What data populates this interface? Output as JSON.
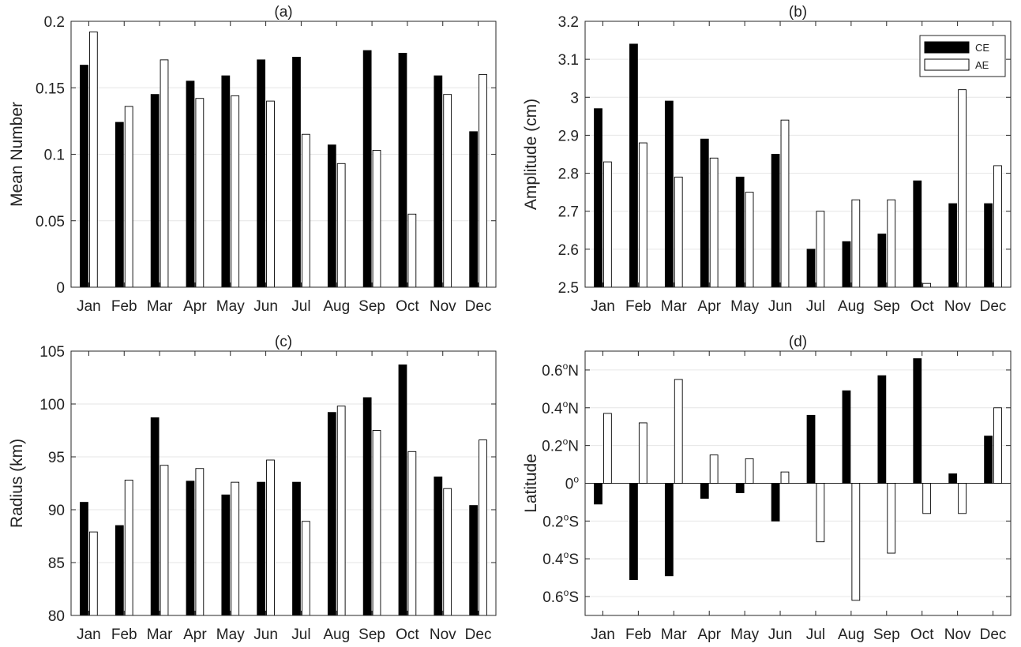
{
  "legend": {
    "ce_label": "CE",
    "ae_label": "AE",
    "ce_color": "#000000",
    "ae_color": "#ffffff"
  },
  "chart_data": [
    {
      "panel": "a",
      "type": "bar",
      "title": "(a)",
      "ylabel": "Mean Number",
      "xlabel": "",
      "categories": [
        "Jan",
        "Feb",
        "Mar",
        "Apr",
        "May",
        "Jun",
        "Jul",
        "Aug",
        "Sep",
        "Oct",
        "Nov",
        "Dec"
      ],
      "ylim": [
        0,
        0.2
      ],
      "yticks": [
        0,
        0.05,
        0.1,
        0.15,
        0.2
      ],
      "ytick_labels": [
        "0",
        "0.05",
        "0.1",
        "0.15",
        "0.2"
      ],
      "grid": true,
      "series": [
        {
          "name": "CE",
          "values": [
            0.167,
            0.124,
            0.145,
            0.155,
            0.159,
            0.171,
            0.173,
            0.107,
            0.178,
            0.176,
            0.159,
            0.117
          ]
        },
        {
          "name": "AE",
          "values": [
            0.192,
            0.136,
            0.171,
            0.142,
            0.144,
            0.14,
            0.115,
            0.093,
            0.103,
            0.055,
            0.145,
            0.16
          ]
        }
      ]
    },
    {
      "panel": "b",
      "type": "bar",
      "title": "(b)",
      "ylabel": "Amplitude (cm)",
      "xlabel": "",
      "categories": [
        "Jan",
        "Feb",
        "Mar",
        "Apr",
        "May",
        "Jun",
        "Jul",
        "Aug",
        "Sep",
        "Oct",
        "Nov",
        "Dec"
      ],
      "ylim": [
        2.5,
        3.2
      ],
      "yticks": [
        2.5,
        2.6,
        2.7,
        2.8,
        2.9,
        3.0,
        3.1,
        3.2
      ],
      "ytick_labels": [
        "2.5",
        "2.6",
        "2.7",
        "2.8",
        "2.9",
        "3",
        "3.1",
        "3.2"
      ],
      "grid": true,
      "legend_position": "top-right",
      "series": [
        {
          "name": "CE",
          "values": [
            2.97,
            3.14,
            2.99,
            2.89,
            2.79,
            2.85,
            2.6,
            2.62,
            2.64,
            2.78,
            2.72,
            2.72
          ]
        },
        {
          "name": "AE",
          "values": [
            2.83,
            2.88,
            2.79,
            2.84,
            2.75,
            2.94,
            2.7,
            2.73,
            2.73,
            2.51,
            3.02,
            2.82
          ]
        }
      ]
    },
    {
      "panel": "c",
      "type": "bar",
      "title": "(c)",
      "ylabel": "Radius (km)",
      "xlabel": "",
      "categories": [
        "Jan",
        "Feb",
        "Mar",
        "Apr",
        "May",
        "Jun",
        "Jul",
        "Aug",
        "Sep",
        "Oct",
        "Nov",
        "Dec"
      ],
      "ylim": [
        80,
        105
      ],
      "yticks": [
        80,
        85,
        90,
        95,
        100,
        105
      ],
      "ytick_labels": [
        "80",
        "85",
        "90",
        "95",
        "100",
        "105"
      ],
      "grid": true,
      "series": [
        {
          "name": "CE",
          "values": [
            90.7,
            88.5,
            98.7,
            92.7,
            91.4,
            92.6,
            92.6,
            99.2,
            100.6,
            103.7,
            93.1,
            90.4
          ]
        },
        {
          "name": "AE",
          "values": [
            87.9,
            92.8,
            94.2,
            93.9,
            92.6,
            94.7,
            88.9,
            99.8,
            97.5,
            95.5,
            92.0,
            96.6
          ]
        }
      ]
    },
    {
      "panel": "d",
      "type": "bar",
      "title": "(d)",
      "ylabel": "Latitude",
      "xlabel": "",
      "categories": [
        "Jan",
        "Feb",
        "Mar",
        "Apr",
        "May",
        "Jun",
        "Jul",
        "Aug",
        "Sep",
        "Oct",
        "Nov",
        "Dec"
      ],
      "ylim": [
        -0.7,
        0.7
      ],
      "yticks": [
        -0.6,
        -0.4,
        -0.2,
        0,
        0.2,
        0.4,
        0.6
      ],
      "ytick_labels": [
        {
          "base": "0.6",
          "sup": "o",
          "suffix": "S"
        },
        {
          "base": "0.4",
          "sup": "o",
          "suffix": "S"
        },
        {
          "base": "0.2",
          "sup": "o",
          "suffix": "S"
        },
        {
          "base": "0",
          "sup": "o",
          "suffix": ""
        },
        {
          "base": "0.2",
          "sup": "o",
          "suffix": "N"
        },
        {
          "base": "0.4",
          "sup": "o",
          "suffix": "N"
        },
        {
          "base": "0.6",
          "sup": "o",
          "suffix": "N"
        }
      ],
      "grid": true,
      "series": [
        {
          "name": "CE",
          "values": [
            -0.11,
            -0.51,
            -0.49,
            -0.08,
            -0.05,
            -0.2,
            0.36,
            0.49,
            0.57,
            0.66,
            0.05,
            0.25
          ]
        },
        {
          "name": "AE",
          "values": [
            0.37,
            0.32,
            0.55,
            0.15,
            0.13,
            0.06,
            -0.31,
            -0.62,
            -0.37,
            -0.16,
            -0.16,
            0.4
          ]
        }
      ]
    }
  ]
}
